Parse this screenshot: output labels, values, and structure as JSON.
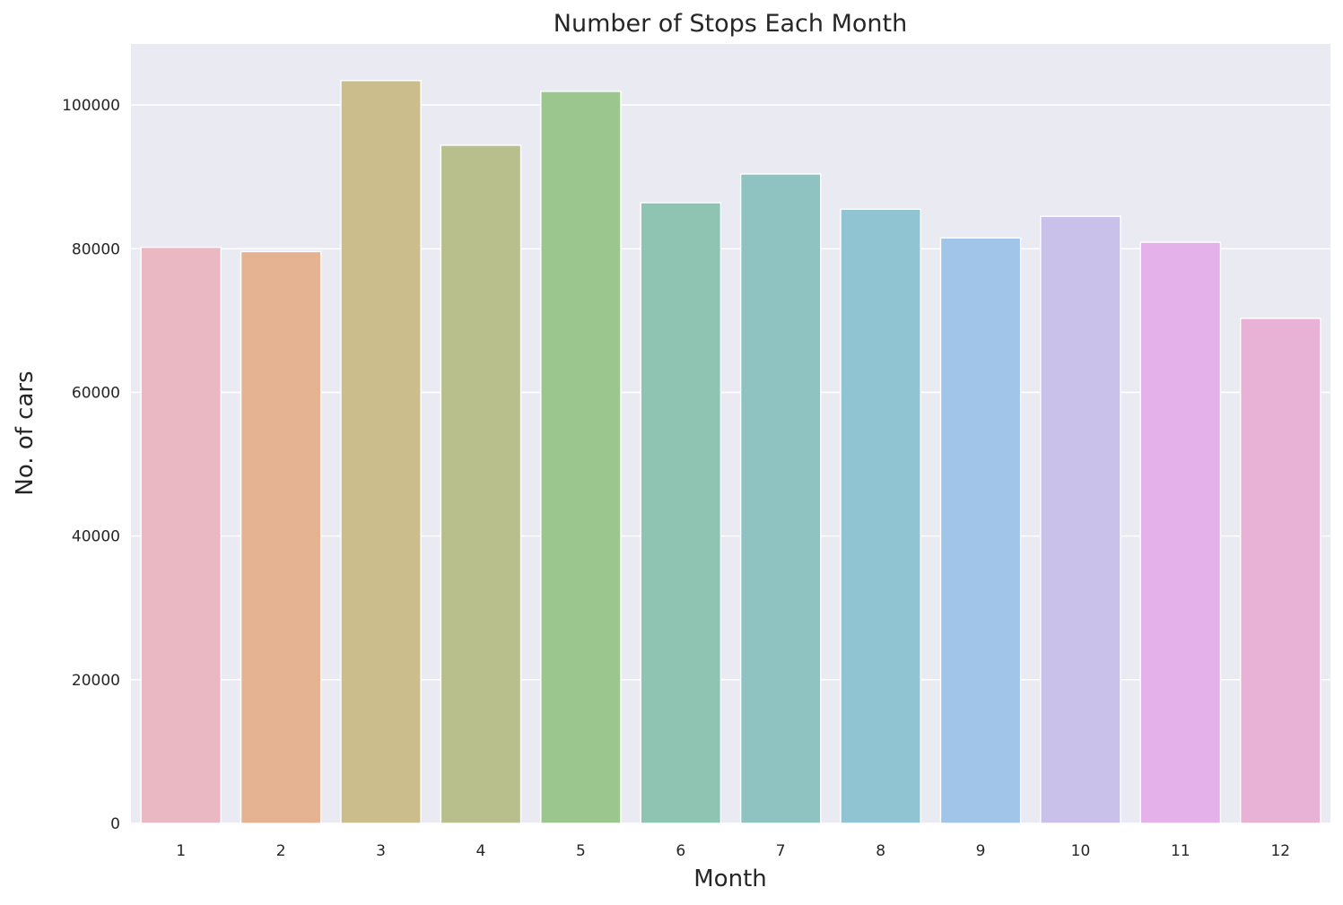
{
  "chart_data": {
    "type": "bar",
    "title": "Number of Stops Each Month",
    "xlabel": "Month",
    "ylabel": "No. of cars",
    "categories": [
      "1",
      "2",
      "3",
      "4",
      "5",
      "6",
      "7",
      "8",
      "9",
      "10",
      "11",
      "12"
    ],
    "values": [
      80200,
      79600,
      103400,
      94400,
      101900,
      86400,
      90400,
      85500,
      81500,
      84500,
      80900,
      70300
    ],
    "ylim": [
      0,
      108500
    ],
    "yticks": [
      0,
      20000,
      40000,
      60000,
      80000,
      100000
    ],
    "grid": true,
    "legend": "none",
    "colors": [
      "#eab8c3",
      "#e5b392",
      "#cbbd8c",
      "#b8bf8c",
      "#9bc78e",
      "#8fc4b2",
      "#8fc3c2",
      "#91c4d2",
      "#a1c5e8",
      "#c9c1ea",
      "#e4b1ea",
      "#e8b1d6"
    ],
    "background": "#eaeaf2"
  }
}
